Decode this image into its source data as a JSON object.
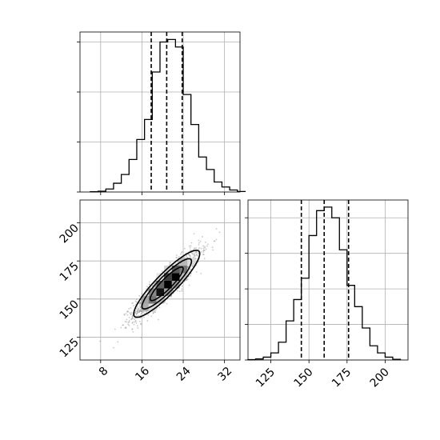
{
  "chart_data": {
    "type": "corner",
    "grid": true,
    "panels": [
      {
        "id": "hist_x",
        "type": "histogram",
        "bin_start": 6.0,
        "bin_width": 1.5,
        "counts": [
          1,
          3,
          12,
          35,
          70,
          130,
          210,
          290,
          480,
          600,
          610,
          580,
          390,
          270,
          140,
          90,
          40,
          20,
          8,
          2
        ],
        "quantile_lines": [
          17.8,
          20.8,
          23.8
        ],
        "xlim": [
          4,
          35
        ],
        "ylim": [
          0,
          640
        ],
        "yticks": [
          0,
          200,
          400,
          600
        ],
        "show_tick_labels": false
      },
      {
        "id": "joint",
        "type": "2d-density",
        "xlim": [
          4,
          35
        ],
        "ylim": [
          110,
          215
        ],
        "xticks": [
          8,
          16,
          24,
          32
        ],
        "xtick_labels": [
          "8",
          "16",
          "24",
          "32"
        ],
        "yticks": [
          125,
          150,
          175,
          200
        ],
        "ytick_labels": [
          "125",
          "150",
          "175",
          "200"
        ],
        "center": [
          20.8,
          160
        ],
        "std": [
          3.2,
          11
        ],
        "correlation": 0.9,
        "n_scatter_points": 1600,
        "contour_levels_sigma": [
          1,
          1.5,
          2
        ],
        "density_bins": {
          "x_start": 15.8,
          "x_width": 1.5,
          "y_start": 142,
          "y_width": 5,
          "nx": 7,
          "ny": 7
        }
      },
      {
        "id": "hist_y",
        "type": "histogram",
        "bin_start": 110,
        "bin_width": 5,
        "counts": [
          1,
          3,
          8,
          20,
          50,
          110,
          170,
          230,
          350,
          420,
          430,
          400,
          310,
          210,
          150,
          90,
          40,
          20,
          8,
          2
        ],
        "quantile_lines": [
          145,
          160,
          176
        ],
        "xlim": [
          110,
          215
        ],
        "xticks": [
          125,
          150,
          175,
          200
        ],
        "xtick_labels": [
          "125",
          "150",
          "175",
          "200"
        ],
        "ylim": [
          0,
          450
        ],
        "yticks": [
          0,
          100,
          200,
          300,
          400
        ],
        "show_y_tick_labels": false
      }
    ]
  }
}
